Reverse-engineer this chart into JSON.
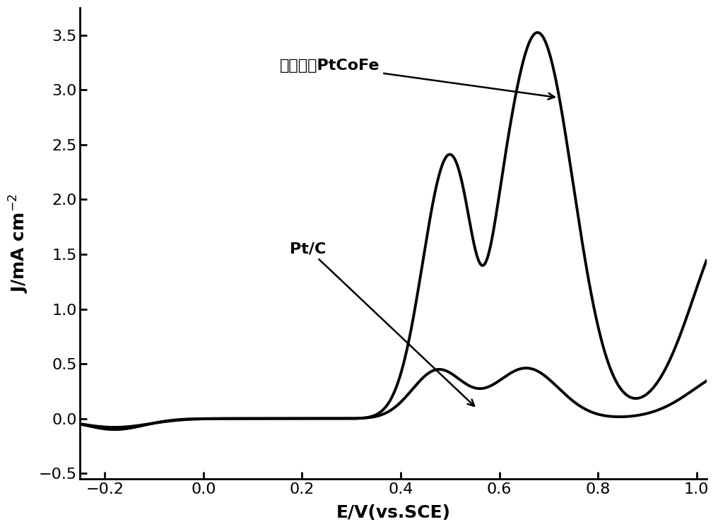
{
  "xlabel": "E/V(vs.SCE)",
  "xlim": [
    -0.25,
    1.02
  ],
  "ylim": [
    -0.55,
    3.75
  ],
  "xticks": [
    -0.2,
    0.0,
    0.2,
    0.4,
    0.6,
    0.8,
    1.0
  ],
  "yticks": [
    -0.5,
    0.0,
    0.5,
    1.0,
    1.5,
    2.0,
    2.5,
    3.0,
    3.5
  ],
  "line_color": "#000000",
  "background_color": "#ffffff",
  "annotation_ptcofe": "多角形貌PtCoFe",
  "annotation_ptc": "Pt/C",
  "axis_fontsize": 18,
  "tick_fontsize": 16,
  "annot_fontsize": 16
}
